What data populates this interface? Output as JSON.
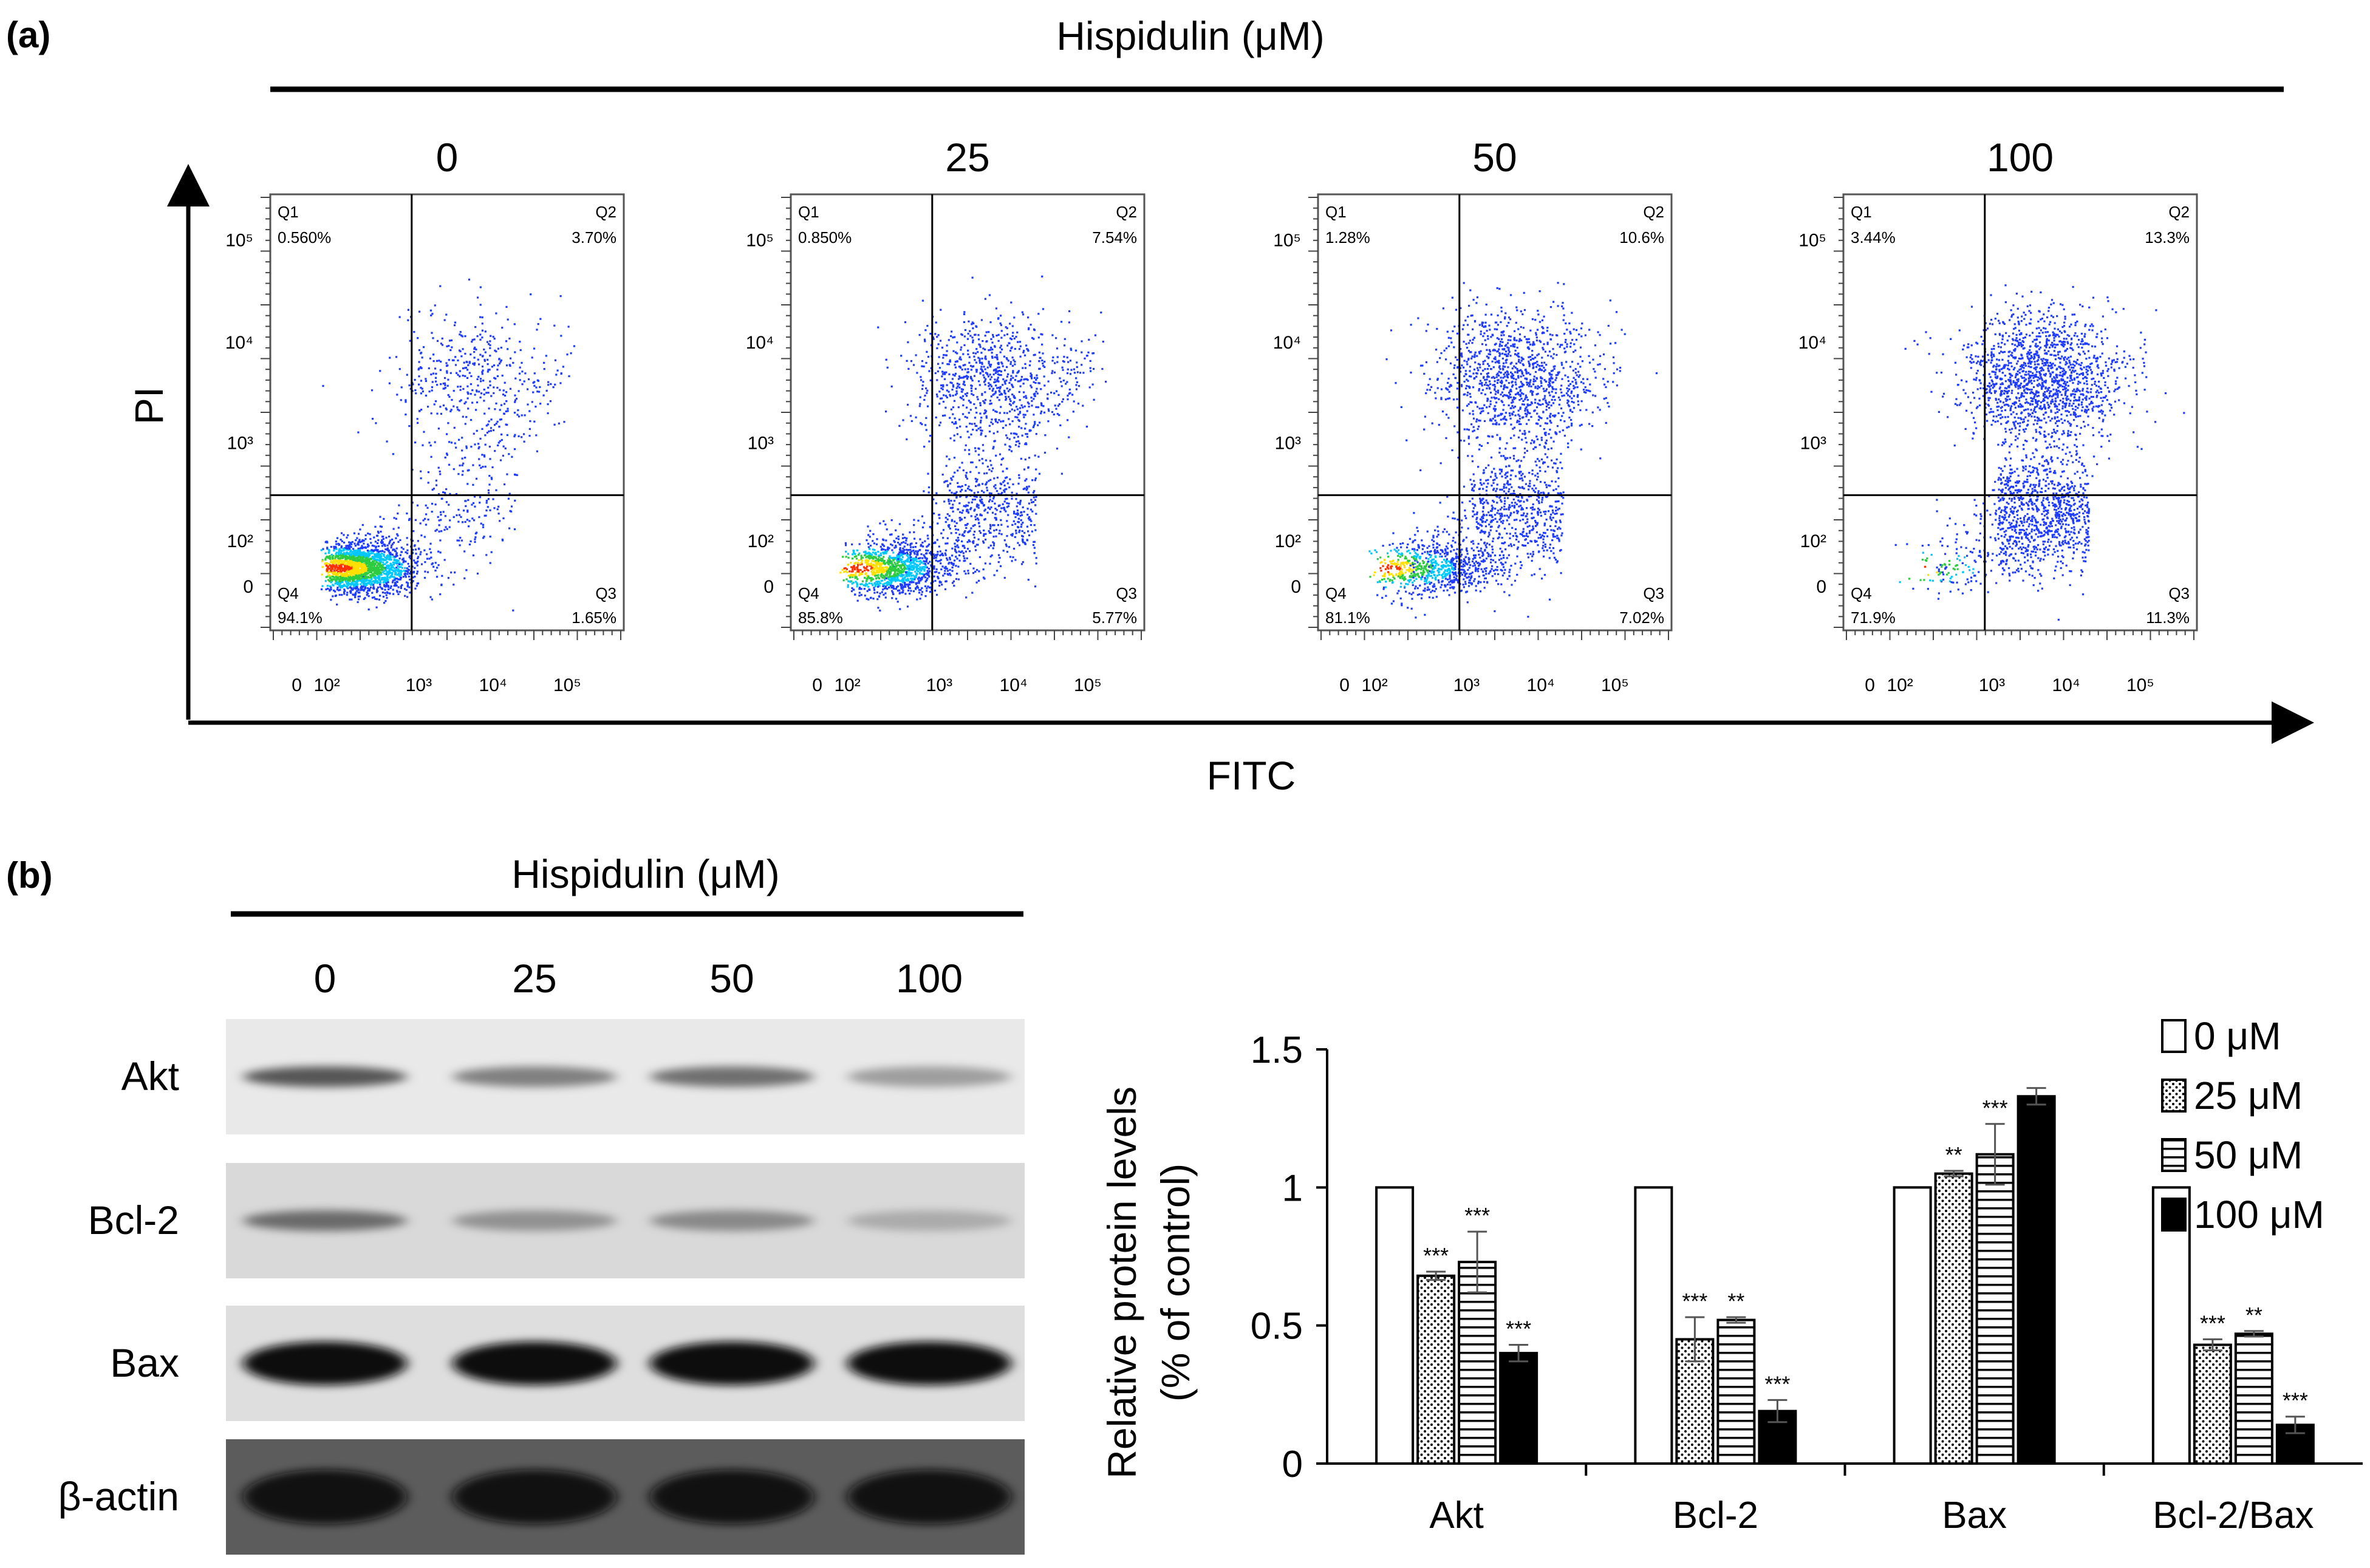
{
  "panel_a": {
    "label": "(a)",
    "treatment_title": "Hispidulin (μM)",
    "y_axis_label": "PI",
    "x_axis_label": "FITC",
    "plot_y_ticks": [
      "10⁵",
      "10⁴",
      "10³",
      "10²",
      "0"
    ],
    "plot_x_ticks": [
      "0",
      "10²",
      "10³",
      "10⁴",
      "10⁵"
    ],
    "scatter_colors": [
      "#1f3cff",
      "#00c8ff",
      "#2ecc40",
      "#ffe000",
      "#ff3000",
      "#c00000"
    ],
    "plots": [
      {
        "dose": "0",
        "q1_name": "Q1",
        "q1": "0.560%",
        "q2_name": "Q2",
        "q2": "3.70%",
        "q3_name": "Q3",
        "q3": "1.65%",
        "q4_name": "Q4",
        "q4": "94.1%",
        "early": 0.0165,
        "late": 0.037
      },
      {
        "dose": "25",
        "q1_name": "Q1",
        "q1": "0.850%",
        "q2_name": "Q2",
        "q2": "7.54%",
        "q3_name": "Q3",
        "q3": "5.77%",
        "q4_name": "Q4",
        "q4": "85.8%",
        "early": 0.0577,
        "late": 0.0754
      },
      {
        "dose": "50",
        "q1_name": "Q1",
        "q1": "1.28%",
        "q2_name": "Q2",
        "q2": "10.6%",
        "q3_name": "Q3",
        "q3": "7.02%",
        "q4_name": "Q4",
        "q4": "81.1%",
        "early": 0.0702,
        "late": 0.106
      },
      {
        "dose": "100",
        "q1_name": "Q1",
        "q1": "3.44%",
        "q2_name": "Q2",
        "q2": "13.3%",
        "q3_name": "Q3",
        "q3": "11.3%",
        "q4_name": "Q4",
        "q4": "71.9%",
        "early": 0.113,
        "late": 0.133
      }
    ]
  },
  "panel_b": {
    "label": "(b)",
    "treatment_title": "Hispidulin (μM)",
    "lane_labels": [
      "0",
      "25",
      "50",
      "100"
    ],
    "blots": [
      {
        "protein": "Akt",
        "intensities": [
          0.9,
          0.65,
          0.75,
          0.45
        ]
      },
      {
        "protein": "Bcl-2",
        "intensities": [
          0.85,
          0.55,
          0.62,
          0.35
        ]
      },
      {
        "protein": "Bax",
        "intensities": [
          1.0,
          1.0,
          1.0,
          1.0
        ]
      },
      {
        "protein": "β-actin",
        "intensities": [
          0.95,
          0.95,
          0.95,
          0.95
        ]
      }
    ]
  },
  "chart_data": {
    "type": "bar",
    "title": "",
    "ylabel_line1": "Relative protein levels",
    "ylabel_line2": "(% of control)",
    "xlabel": "",
    "ylim": [
      0,
      1.5
    ],
    "yticks": [
      0,
      0.5,
      1,
      1.5
    ],
    "ytick_labels": [
      "0",
      "0.5",
      "1",
      "1.5"
    ],
    "categories": [
      "Akt",
      "Bcl-2",
      "Bax",
      "Bcl-2/Bax"
    ],
    "legend_position": "top-right",
    "series": [
      {
        "name": "0  μM",
        "pattern": "white",
        "values": [
          1.0,
          1.0,
          1.0,
          1.0
        ],
        "errors": [
          0,
          0,
          0,
          0
        ],
        "sig": [
          "",
          "",
          "",
          ""
        ]
      },
      {
        "name": "25 μM",
        "pattern": "dots",
        "values": [
          0.68,
          0.45,
          1.05,
          0.43
        ],
        "errors": [
          0.015,
          0.08,
          0.01,
          0.02
        ],
        "sig": [
          "***",
          "***",
          "**",
          "***"
        ]
      },
      {
        "name": "50 μM",
        "pattern": "hlines",
        "values": [
          0.73,
          0.52,
          1.12,
          0.47
        ],
        "errors": [
          0.11,
          0.01,
          0.11,
          0.01
        ],
        "sig": [
          "***",
          "**",
          "***",
          "**"
        ]
      },
      {
        "name": "100 μM",
        "pattern": "black",
        "values": [
          0.4,
          0.19,
          1.33,
          0.14
        ],
        "errors": [
          0.03,
          0.04,
          0.03,
          0.03
        ],
        "sig": [
          "***",
          "***",
          "",
          "***"
        ]
      }
    ]
  }
}
